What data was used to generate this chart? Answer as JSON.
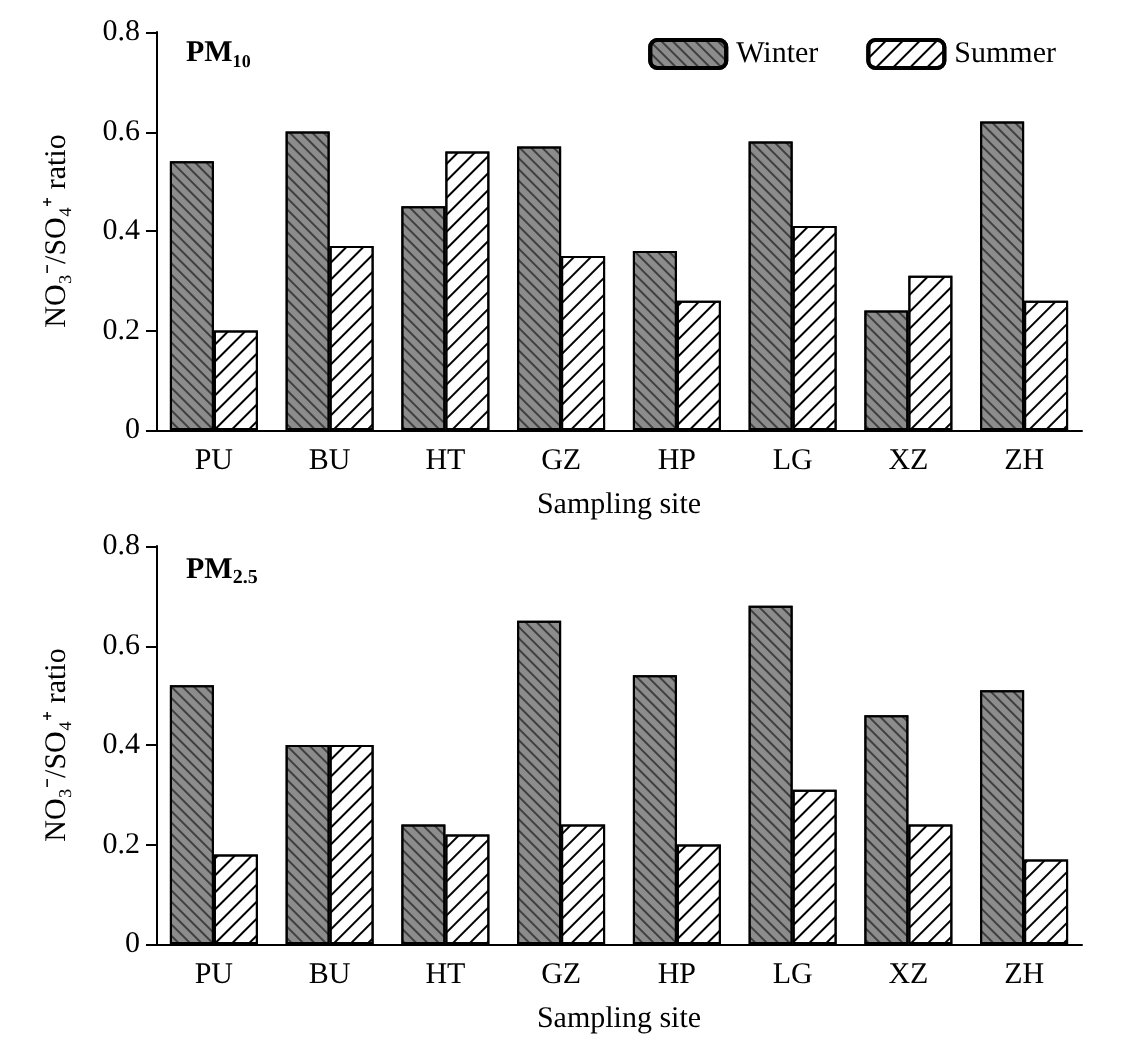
{
  "chart_data": [
    {
      "type": "bar",
      "title": "PM₁₀",
      "xlabel": "Sampling site",
      "ylabel": "NO₃⁻/SO₄⁺ ratio",
      "categories": [
        "PU",
        "BU",
        "HT",
        "GZ",
        "HP",
        "LG",
        "XZ",
        "ZH"
      ],
      "series": [
        {
          "name": "Winter",
          "color": "#8c8c8c",
          "values": [
            0.54,
            0.6,
            0.45,
            0.57,
            0.36,
            0.58,
            0.24,
            0.62
          ]
        },
        {
          "name": "Summer",
          "color": "#ffffff",
          "values": [
            0.2,
            0.37,
            0.56,
            0.35,
            0.26,
            0.41,
            0.31,
            0.26
          ]
        }
      ],
      "ylim": [
        0,
        0.8
      ],
      "yticks": [
        0,
        0.2,
        0.4,
        0.6,
        0.8
      ],
      "grid": false,
      "legend": "top right"
    },
    {
      "type": "bar",
      "title": "PM$_{2.5}$",
      "xlabel": "Sampling site",
      "ylabel": "NO₃⁻/SO₄⁺ ratio",
      "categories": [
        "PU",
        "BU",
        "HT",
        "GZ",
        "HP",
        "LG",
        "XZ",
        "ZH"
      ],
      "series": [
        {
          "color": "#8c8c8c",
          "values": [
            0.52,
            0.4,
            0.24,
            0.65,
            0.54,
            0.68,
            0.46,
            0.51
          ]
        },
        {
          "color": "#ffffff",
          "values": [
            0.18,
            0.4,
            0.22,
            0.24,
            0.2,
            0.31,
            0.24,
            0.17
          ]
        }
      ],
      "ylim": [
        0,
        0.8
      ],
      "yticks": [
        0,
        0.2,
        0.4,
        0.6,
        0.8
      ],
      "grid": false
    }
  ]
}
